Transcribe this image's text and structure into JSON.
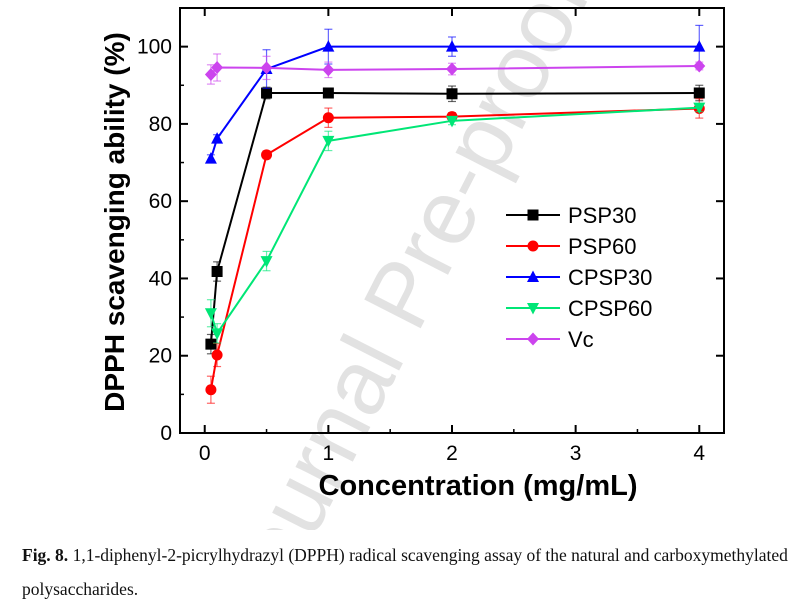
{
  "chart_data": {
    "type": "line",
    "xlabel": "Concentration (mg/mL)",
    "ylabel": "DPPH scavenging ability (%)",
    "xlim": [
      -0.2,
      4.2
    ],
    "ylim": [
      0,
      110
    ],
    "xticks": [
      0,
      1,
      2,
      3,
      4
    ],
    "yticks": [
      0,
      20,
      40,
      60,
      80,
      100
    ],
    "grid": false,
    "legend_position": "center-right",
    "x": [
      0.05,
      0.1,
      0.5,
      1,
      2,
      4
    ],
    "series": [
      {
        "name": "PSP30",
        "color": "#000000",
        "marker": "square",
        "values": [
          23.0,
          41.8,
          88.0,
          88.0,
          87.8,
          88.0
        ],
        "errors": [
          2.5,
          2.5,
          1.5,
          1.0,
          2.0,
          2.0
        ]
      },
      {
        "name": "PSP60",
        "color": "#ff0000",
        "marker": "circle",
        "values": [
          11.2,
          20.2,
          72.0,
          81.6,
          81.9,
          84.0
        ],
        "errors": [
          3.5,
          3.0,
          1.0,
          2.5,
          1.0,
          2.5
        ]
      },
      {
        "name": "CPSP30",
        "color": "#0000ff",
        "marker": "triangle-up",
        "values": [
          71.0,
          76.2,
          94.2,
          100.0,
          100.0,
          100.0
        ],
        "errors": [
          1.0,
          1.0,
          5.0,
          4.5,
          2.5,
          5.5
        ]
      },
      {
        "name": "CPSP60",
        "color": "#00e676",
        "marker": "triangle-down",
        "values": [
          31.0,
          25.8,
          44.5,
          75.6,
          80.8,
          84.2
        ],
        "errors": [
          3.5,
          2.5,
          2.5,
          2.5,
          1.0,
          1.0
        ]
      },
      {
        "name": "Vc",
        "color": "#cc44ee",
        "marker": "diamond",
        "values": [
          92.8,
          94.6,
          94.5,
          94.0,
          94.2,
          95.0
        ],
        "errors": [
          2.5,
          3.5,
          3.0,
          2.0,
          1.5,
          1.0
        ]
      }
    ]
  },
  "watermark": "Journal Pre-proof",
  "caption": {
    "label": "Fig. 8.",
    "text": " 1,1-diphenyl-2-picrylhydrazyl (DPPH) radical scavenging assay of the natural and carboxymethylated polysaccharides."
  }
}
